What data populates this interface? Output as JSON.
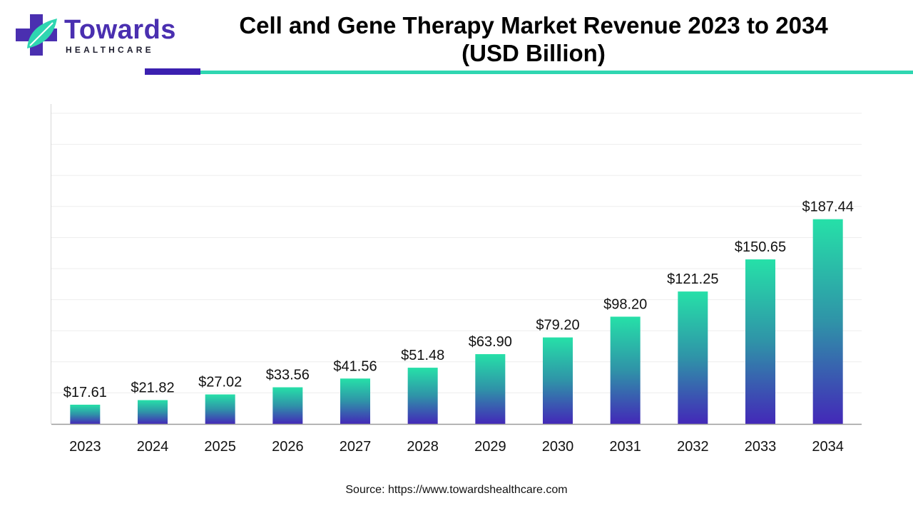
{
  "brand": {
    "name": "Towards",
    "sub": "HEALTHCARE",
    "colors": {
      "purple": "#4a2fb0",
      "teal": "#2fd6b1"
    }
  },
  "header": {
    "title_line1": "Cell and Gene Therapy Market Revenue 2023 to 2034",
    "title_line2": "(USD Billion)"
  },
  "source": "Source: https://www.towardshealthcare.com",
  "chart_data": {
    "type": "bar",
    "title": "Cell and Gene Therapy Market Revenue 2023 to 2034 (USD Billion)",
    "categories": [
      "2023",
      "2024",
      "2025",
      "2026",
      "2027",
      "2028",
      "2029",
      "2030",
      "2031",
      "2032",
      "2033",
      "2034"
    ],
    "values": [
      17.61,
      21.82,
      27.02,
      33.56,
      41.56,
      51.48,
      63.9,
      79.2,
      98.2,
      121.25,
      150.65,
      187.44
    ],
    "value_labels": [
      "$17.61",
      "$21.82",
      "$27.02",
      "$33.56",
      "$41.56",
      "$51.48",
      "$63.90",
      "$79.20",
      "$98.20",
      "$121.25",
      "$150.65",
      "$187.44"
    ],
    "xlabel": "",
    "ylabel": "",
    "ylim": [
      0,
      200
    ],
    "grid": true,
    "legend": "none",
    "bar_gradient": {
      "top": "#26e0a8",
      "middle": "#2f93a8",
      "bottom": "#4328b8"
    }
  }
}
